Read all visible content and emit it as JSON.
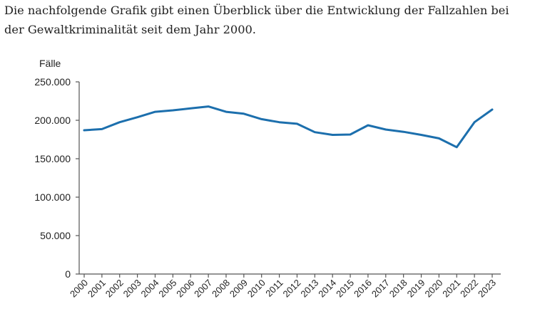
{
  "intro": {
    "text": "Die nachfolgende Grafik gibt einen Überblick über die Entwicklung der Fallzahlen bei der Gewaltkriminalität seit dem Jahr 2000."
  },
  "colors": {
    "line": "#1c6fad",
    "axis": "#555555",
    "text": "#222222"
  },
  "chart_data": {
    "type": "line",
    "title": "",
    "xlabel": "",
    "ylabel": "Fälle",
    "ylim": [
      0,
      250000
    ],
    "yticks": [
      0,
      50000,
      100000,
      150000,
      200000,
      250000
    ],
    "ytick_labels": [
      "0",
      "50.000",
      "100.000",
      "150.000",
      "200.000",
      "250.000"
    ],
    "categories": [
      "2000",
      "2001",
      "2002",
      "2003",
      "2004",
      "2005",
      "2006",
      "2007",
      "2008",
      "2009",
      "2010",
      "2011",
      "2012",
      "2013",
      "2014",
      "2015",
      "2016",
      "2017",
      "2018",
      "2019",
      "2020",
      "2021",
      "2022",
      "2023"
    ],
    "series": [
      {
        "name": "Gewaltkriminalität",
        "values": [
          187000,
          188500,
          197500,
          204000,
          211000,
          213000,
          215500,
          218000,
          211000,
          208500,
          201500,
          197500,
          195500,
          184500,
          181000,
          181500,
          193500,
          188000,
          185000,
          181000,
          176500,
          165000,
          197500,
          214000
        ]
      }
    ],
    "grid": false,
    "legend": "none"
  }
}
